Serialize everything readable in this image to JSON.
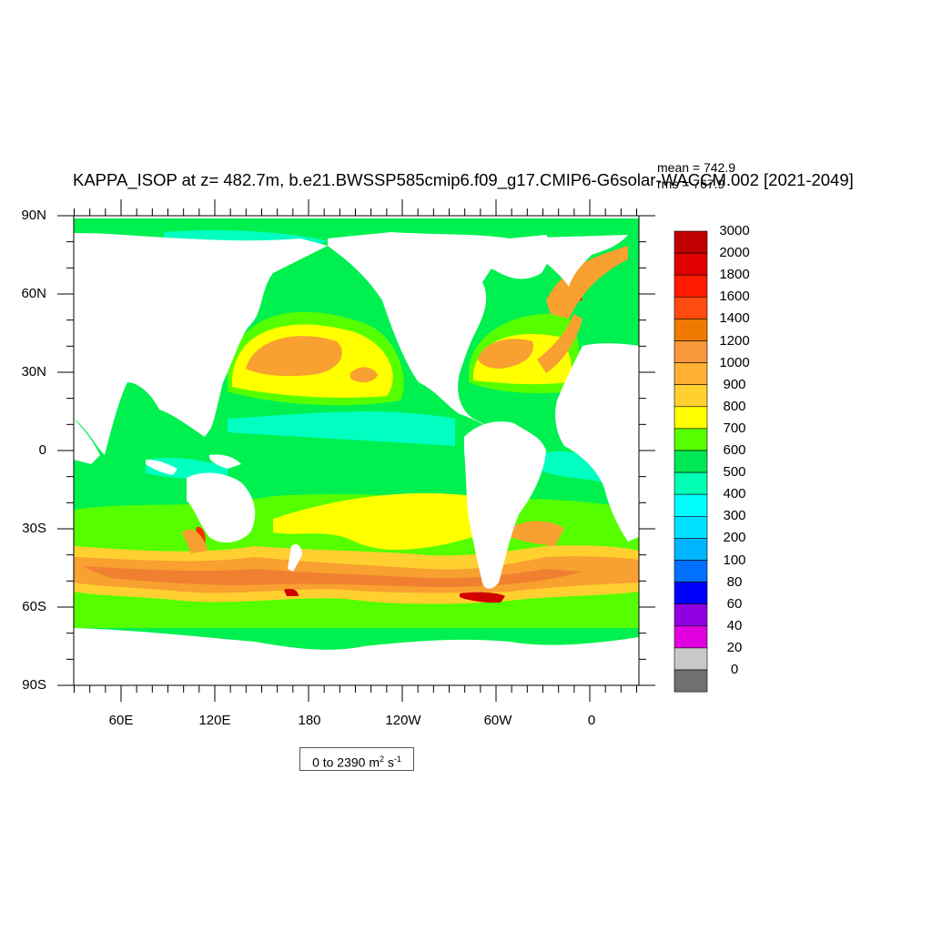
{
  "title": "KAPPA_ISOP at z= 482.7m, b.e21.BWSSP585cmip6.f09_g17.CMIP6-G6solar-WACCM.002 [2021-2049]",
  "stats": {
    "mean": "mean = 742.9",
    "rms": "rms = 767.9"
  },
  "range": {
    "prefix": "0 to 2390 m",
    "sup1": "2",
    "mid": " s",
    "sup2": "-1"
  },
  "axes": {
    "lat_labels": [
      "90N",
      "60N",
      "30N",
      "0",
      "30S",
      "60S",
      "90S"
    ],
    "lon_labels": [
      "60E",
      "120E",
      "180",
      "120W",
      "60W",
      "0"
    ]
  },
  "colorbar": {
    "labels": [
      "3000",
      "2000",
      "1800",
      "1600",
      "1400",
      "1200",
      "1000",
      "900",
      "800",
      "700",
      "600",
      "500",
      "400",
      "300",
      "200",
      "100",
      "80",
      "60",
      "40",
      "20",
      "0"
    ],
    "colors": [
      "#c00000",
      "#e00000",
      "#ff1a00",
      "#ff4a10",
      "#f07a00",
      "#f89838",
      "#ffb030",
      "#ffd030",
      "#ffff00",
      "#55ff00",
      "#00e855",
      "#00ffb4",
      "#00ffff",
      "#00e0ff",
      "#00b4ff",
      "#0070ff",
      "#0000ff",
      "#9000e0",
      "#e000e0",
      "#c8c8c8",
      "#707070"
    ]
  },
  "map": {
    "field_colors": {
      "base": "#00f050",
      "band700": "#55ff00",
      "band800": "#ffff00",
      "band1000": "#ffd030",
      "band1200": "#f8a030",
      "band1400": "#f08030",
      "band1600": "#ff2a00",
      "band2000": "#d00000",
      "band600": "#00ffc0",
      "land": "#ffffff"
    }
  }
}
